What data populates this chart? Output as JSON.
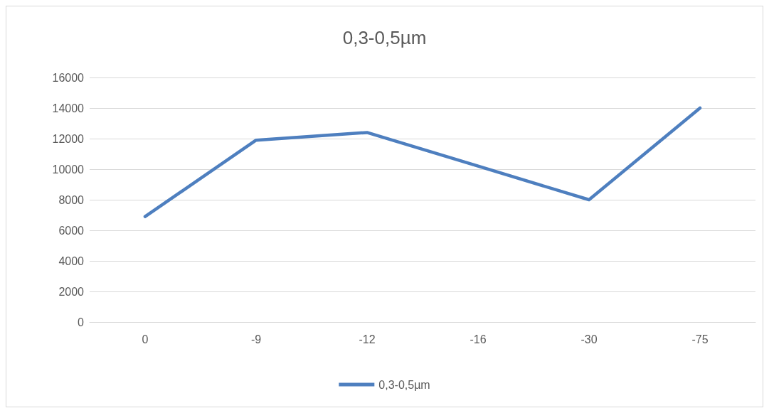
{
  "chart_data": {
    "type": "line",
    "title": "0,3-0,5µm",
    "categories": [
      "0",
      "-9",
      "-12",
      "-16",
      "-30",
      "-75"
    ],
    "series": [
      {
        "name": "0,3-0,5µm",
        "color": "#4e7fbf",
        "values": [
          6900,
          11900,
          12400,
          10200,
          8000,
          14000
        ]
      }
    ],
    "ylim": [
      0,
      16000
    ],
    "yticks": [
      0,
      2000,
      4000,
      6000,
      8000,
      10000,
      12000,
      14000,
      16000
    ],
    "grid": "y",
    "legend": "bottom",
    "marker": "none",
    "line_style": "solid"
  }
}
